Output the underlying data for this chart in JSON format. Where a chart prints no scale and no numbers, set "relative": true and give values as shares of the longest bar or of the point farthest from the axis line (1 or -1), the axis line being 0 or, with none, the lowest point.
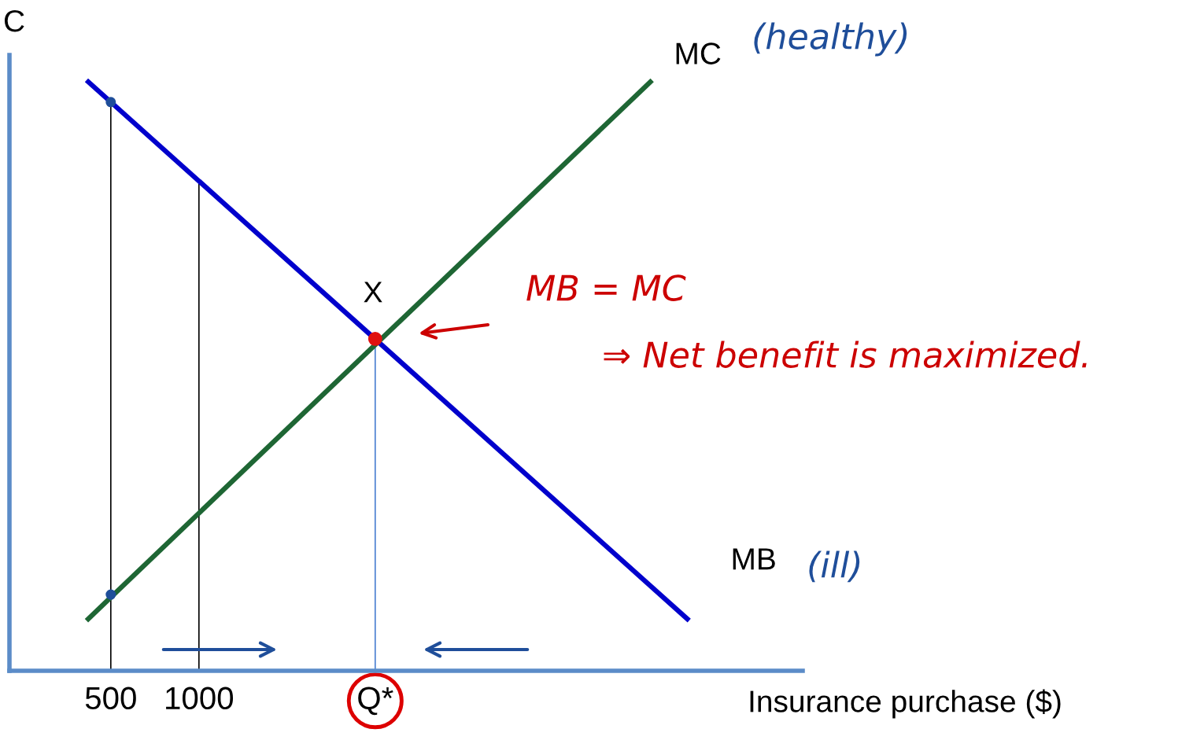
{
  "chart_data": {
    "type": "line",
    "relative": true,
    "ylabel": "C",
    "xlabel": "Insurance purchase ($)",
    "xlim": [
      -75,
      4425
    ],
    "xticks": [
      500,
      1000,
      {
        "value": 2000,
        "label": "Q*"
      }
    ],
    "series": [
      {
        "name": "MB",
        "color": "#0000cc",
        "x": [
          362,
          3781
        ],
        "values": [
          1,
          0.085
        ]
      },
      {
        "name": "MC",
        "color": "#1e6634",
        "x": [
          362,
          3571
        ],
        "values": [
          0.085,
          1
        ]
      },
      {
        "type": "scatter",
        "color": "#1f4e9a",
        "x": [
          500,
          500
        ],
        "values": [
          0.963,
          0.129
        ]
      },
      {
        "type": "scatter",
        "color": "#e01010",
        "x": [
          2000
        ],
        "values": [
          0.562
        ]
      }
    ],
    "ref_lines": [
      {
        "axis": "x",
        "value": 500,
        "color": "#000000"
      },
      {
        "axis": "x",
        "value": 1000,
        "color": "#000000"
      },
      {
        "axis": "x",
        "value": 2000,
        "color": "#4a7fd0"
      }
    ],
    "annotations": [
      {
        "text": "X",
        "x": 2000,
        "y": 0.562
      },
      "(healthy)",
      "(ill)",
      "MB = MC",
      "⇒ Net benefit is maximized."
    ],
    "grid": false,
    "line_style": "solid"
  }
}
